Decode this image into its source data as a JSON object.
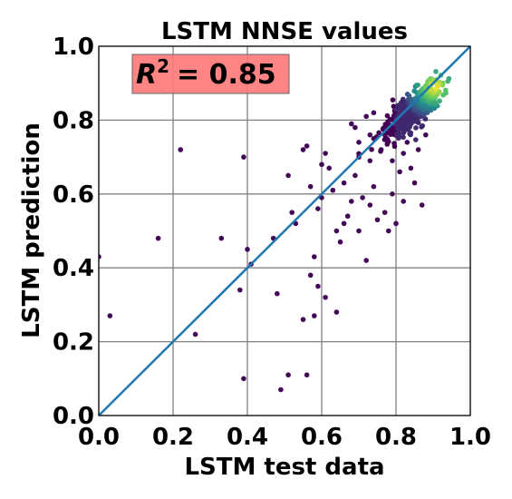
{
  "chart_data": {
    "type": "scatter",
    "title": "LSTM NNSE values",
    "xlabel": "LSTM test data",
    "ylabel": "LSTM prediction",
    "xlim": [
      0.0,
      1.0
    ],
    "ylim": [
      0.0,
      1.0
    ],
    "xticks": [
      "0.0",
      "0.2",
      "0.4",
      "0.6",
      "0.8",
      "1.0"
    ],
    "yticks": [
      "0.0",
      "0.2",
      "0.4",
      "0.6",
      "0.8",
      "1.0"
    ],
    "grid": true,
    "annotation": {
      "text": "= 0.85",
      "r_symbol": "R",
      "superscript": "2",
      "box_color": "#ff7777",
      "position": "top-left"
    },
    "reference_line": {
      "type": "identity",
      "color": "#1f77b4"
    },
    "colormap": "viridis (point density)",
    "outlier_points": [
      [
        0.0,
        0.43
      ],
      [
        0.03,
        0.27
      ],
      [
        0.16,
        0.48
      ],
      [
        0.22,
        0.72
      ],
      [
        0.26,
        0.22
      ],
      [
        0.33,
        0.48
      ],
      [
        0.38,
        0.34
      ],
      [
        0.39,
        0.7
      ],
      [
        0.39,
        0.1
      ],
      [
        0.4,
        0.45
      ],
      [
        0.41,
        0.41
      ],
      [
        0.47,
        0.48
      ],
      [
        0.48,
        0.33
      ],
      [
        0.49,
        0.07
      ],
      [
        0.51,
        0.11
      ],
      [
        0.51,
        0.65
      ],
      [
        0.52,
        0.55
      ],
      [
        0.53,
        0.52
      ],
      [
        0.55,
        0.26
      ],
      [
        0.56,
        0.11
      ],
      [
        0.57,
        0.38
      ],
      [
        0.58,
        0.27
      ],
      [
        0.58,
        0.43
      ],
      [
        0.59,
        0.35
      ],
      [
        0.59,
        0.56
      ],
      [
        0.6,
        0.68
      ],
      [
        0.61,
        0.71
      ],
      [
        0.61,
        0.32
      ],
      [
        0.62,
        0.67
      ],
      [
        0.64,
        0.28
      ],
      [
        0.64,
        0.5
      ],
      [
        0.65,
        0.47
      ],
      [
        0.66,
        0.52
      ],
      [
        0.67,
        0.54
      ],
      [
        0.68,
        0.58
      ],
      [
        0.7,
        0.5
      ],
      [
        0.71,
        0.59
      ],
      [
        0.72,
        0.42
      ],
      [
        0.73,
        0.57
      ],
      [
        0.74,
        0.62
      ],
      [
        0.75,
        0.53
      ],
      [
        0.76,
        0.72
      ],
      [
        0.77,
        0.55
      ],
      [
        0.78,
        0.5
      ],
      [
        0.79,
        0.6
      ],
      [
        0.8,
        0.52
      ],
      [
        0.81,
        0.66
      ],
      [
        0.82,
        0.58
      ],
      [
        0.84,
        0.67
      ],
      [
        0.85,
        0.63
      ],
      [
        0.86,
        0.72
      ],
      [
        0.87,
        0.57
      ],
      [
        0.88,
        0.76
      ],
      [
        0.83,
        0.74
      ],
      [
        0.69,
        0.65
      ],
      [
        0.73,
        0.69
      ],
      [
        0.77,
        0.76
      ],
      [
        0.69,
        0.78
      ],
      [
        0.7,
        0.7
      ],
      [
        0.74,
        0.75
      ],
      [
        0.66,
        0.63
      ],
      [
        0.63,
        0.61
      ],
      [
        0.6,
        0.59
      ],
      [
        0.56,
        0.73
      ],
      [
        0.55,
        0.72
      ],
      [
        0.57,
        0.62
      ],
      [
        0.79,
        0.69
      ],
      [
        0.82,
        0.71
      ],
      [
        0.73,
        0.76
      ],
      [
        0.8,
        0.77
      ],
      [
        0.72,
        0.81
      ],
      [
        0.74,
        0.82
      ],
      [
        0.68,
        0.79
      ],
      [
        0.7,
        0.74
      ]
    ],
    "cluster": {
      "center": [
        0.85,
        0.83
      ],
      "count": 420,
      "spread_along": 0.055,
      "spread_across": 0.018
    }
  }
}
